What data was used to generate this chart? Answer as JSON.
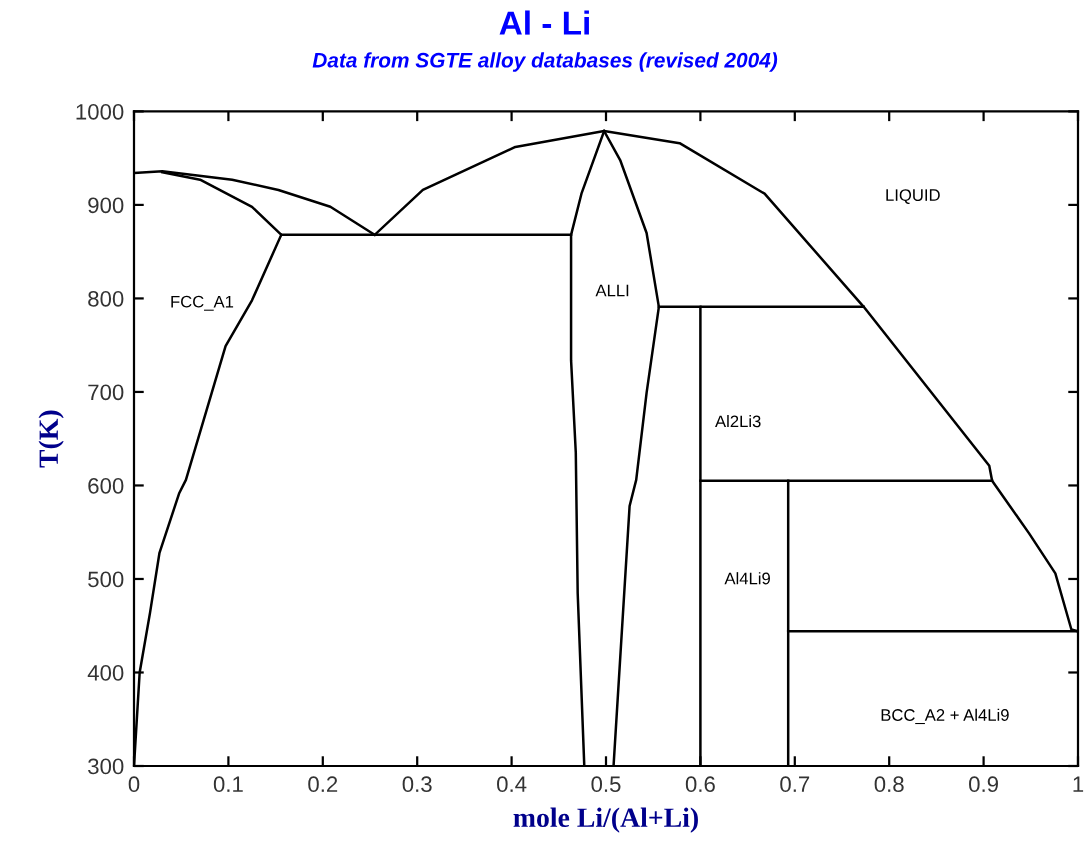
{
  "chart_data": {
    "type": "line",
    "title": "Al - Li",
    "subtitle": "Data from SGTE alloy databases (revised 2004)",
    "xlabel": "mole Li/(Al+Li)",
    "ylabel": "T(K)",
    "xlim": [
      0,
      1
    ],
    "ylim": [
      300,
      1000
    ],
    "xticks": [
      0,
      0.1,
      0.2,
      0.3,
      0.4,
      0.5,
      0.6,
      0.7,
      0.8,
      0.9,
      1
    ],
    "yticks": [
      300,
      400,
      500,
      600,
      700,
      800,
      900,
      1000
    ],
    "grid": false,
    "legend": false,
    "marker": "none",
    "line_style": "solid",
    "series": [
      {
        "color": "#000000",
        "x": [
          0,
          0.03,
          0.104,
          0.153,
          0.208,
          0.255
        ],
        "values": [
          934,
          936,
          927,
          916,
          898,
          868
        ]
      },
      {
        "color": "#000000",
        "x": [
          0.03,
          0.07,
          0.125,
          0.156
        ],
        "values": [
          935,
          927,
          898,
          868
        ]
      },
      {
        "color": "#000000",
        "x": [
          0.156,
          0.125,
          0.097,
          0.055,
          0.048,
          0.027,
          0.017,
          0.006,
          0
        ],
        "values": [
          868,
          798,
          749,
          606,
          592,
          528,
          464,
          400,
          300
        ]
      },
      {
        "color": "#000000",
        "x": [
          0.156,
          0.463
        ],
        "values": [
          868,
          868
        ]
      },
      {
        "color": "#000000",
        "x": [
          0.255,
          0.306,
          0.404,
          0.498,
          0.578,
          0.668,
          0.773,
          0.906,
          0.909,
          0.948,
          0.976,
          0.993,
          1
        ],
        "values": [
          868,
          916,
          962,
          979,
          966,
          912,
          791,
          621,
          605,
          549,
          506,
          446,
          444
        ]
      },
      {
        "color": "#000000",
        "x": [
          0.498,
          0.474,
          0.463,
          0.463,
          0.468,
          0.47,
          0.477
        ],
        "values": [
          979,
          912,
          868,
          734,
          635,
          485,
          300
        ]
      },
      {
        "color": "#000000",
        "x": [
          0.498,
          0.515,
          0.543,
          0.556,
          0.543,
          0.532,
          0.525,
          0.508
        ],
        "values": [
          979,
          948,
          870,
          791,
          699,
          606,
          578,
          300
        ]
      },
      {
        "color": "#000000",
        "x": [
          0.556,
          0.6
        ],
        "values": [
          791,
          791
        ]
      },
      {
        "color": "#000000",
        "x": [
          0.773,
          0.6,
          0.6
        ],
        "values": [
          791,
          791,
          300
        ]
      },
      {
        "color": "#000000",
        "x": [
          0.6,
          0.909
        ],
        "values": [
          605,
          605
        ]
      },
      {
        "color": "#000000",
        "x": [
          0.693,
          0.693
        ],
        "values": [
          300,
          605
        ]
      },
      {
        "color": "#000000",
        "x": [
          0.693,
          1
        ],
        "values": [
          444,
          444
        ]
      }
    ],
    "annotations": [
      "FCC_A1",
      "LIQUID",
      "ALLI",
      "Al2Li3",
      "Al4Li9",
      "BCC_A2 + Al4Li9"
    ]
  }
}
